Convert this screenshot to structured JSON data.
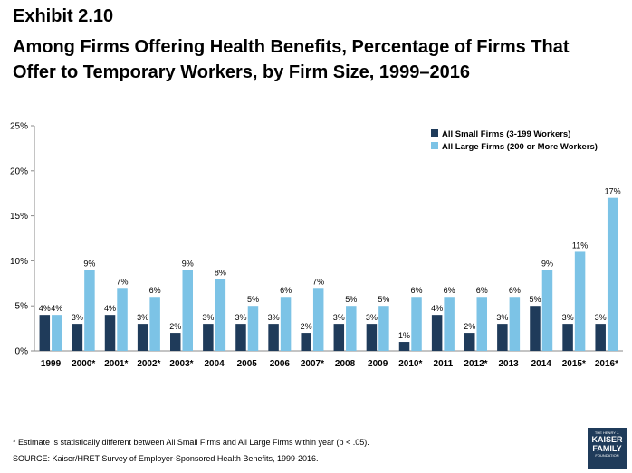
{
  "exhibit": "Exhibit 2.10",
  "title_lines": [
    "Among Firms Offering Health Benefits, Percentage of Firms That",
    "Offer to Temporary Workers, by Firm Size, 1999–2016"
  ],
  "footnote": "* Estimate is statistically different between All Small Firms and All Large Firms within year (p < .05).",
  "source": "SOURCE:  Kaiser/HRET Survey of Employer-Sponsored Health Benefits, 1999-2016.",
  "logo": {
    "line1": "THE HENRY J.",
    "line2": "KAISER",
    "line3": "FAMILY",
    "line4": "FOUNDATION"
  },
  "chart_data": {
    "type": "bar",
    "categories": [
      "1999",
      "2000*",
      "2001*",
      "2002*",
      "2003*",
      "2004",
      "2005",
      "2006",
      "2007*",
      "2008",
      "2009",
      "2010*",
      "2011",
      "2012*",
      "2013",
      "2014",
      "2015*",
      "2016*"
    ],
    "series": [
      {
        "name": "All Small Firms (3-199 Workers)",
        "color": "#1f3b5a",
        "values": [
          4,
          3,
          4,
          3,
          2,
          3,
          3,
          3,
          2,
          3,
          3,
          1,
          4,
          2,
          3,
          5,
          3,
          3
        ]
      },
      {
        "name": "All Large Firms (200 or More Workers)",
        "color": "#7cc3e6",
        "values": [
          4,
          9,
          7,
          6,
          9,
          8,
          5,
          6,
          7,
          5,
          5,
          6,
          6,
          6,
          6,
          9,
          11,
          17
        ]
      }
    ],
    "value_suffix": "%",
    "ylim": [
      0,
      25
    ],
    "yticks": [
      "0%",
      "5%",
      "10%",
      "15%",
      "20%",
      "25%"
    ],
    "legend_position": "top-right",
    "grid": false
  }
}
